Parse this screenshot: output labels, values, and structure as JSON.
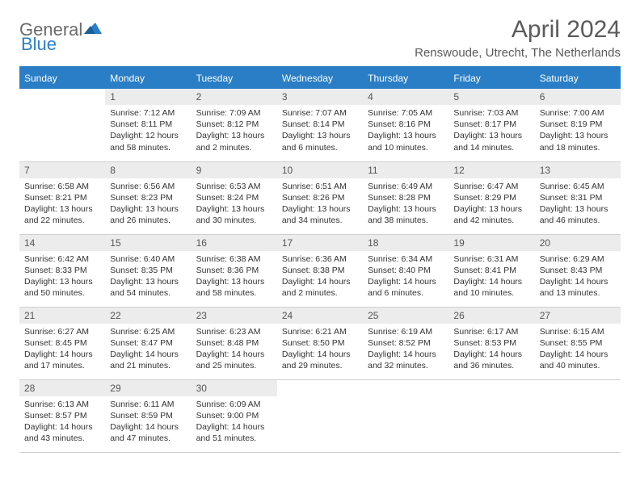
{
  "header": {
    "logo_general": "General",
    "logo_blue": "Blue",
    "month_title": "April 2024",
    "location": "Renswoude, Utrecht, The Netherlands"
  },
  "colors": {
    "header_bg": "#2a7ec6",
    "header_text": "#ffffff",
    "daynum_bg": "#ececec",
    "grid_line": "#cfcfcf",
    "text": "#333333",
    "title_text": "#5a5a5a",
    "logo_gray": "#6a6a6a",
    "logo_blue": "#2a7ec6",
    "page_bg": "#ffffff"
  },
  "weekdays": [
    "Sunday",
    "Monday",
    "Tuesday",
    "Wednesday",
    "Thursday",
    "Friday",
    "Saturday"
  ],
  "cells": [
    {
      "day": "",
      "sunrise": "",
      "sunset": "",
      "daylight": ""
    },
    {
      "day": "1",
      "sunrise": "Sunrise: 7:12 AM",
      "sunset": "Sunset: 8:11 PM",
      "daylight": "Daylight: 12 hours and 58 minutes."
    },
    {
      "day": "2",
      "sunrise": "Sunrise: 7:09 AM",
      "sunset": "Sunset: 8:12 PM",
      "daylight": "Daylight: 13 hours and 2 minutes."
    },
    {
      "day": "3",
      "sunrise": "Sunrise: 7:07 AM",
      "sunset": "Sunset: 8:14 PM",
      "daylight": "Daylight: 13 hours and 6 minutes."
    },
    {
      "day": "4",
      "sunrise": "Sunrise: 7:05 AM",
      "sunset": "Sunset: 8:16 PM",
      "daylight": "Daylight: 13 hours and 10 minutes."
    },
    {
      "day": "5",
      "sunrise": "Sunrise: 7:03 AM",
      "sunset": "Sunset: 8:17 PM",
      "daylight": "Daylight: 13 hours and 14 minutes."
    },
    {
      "day": "6",
      "sunrise": "Sunrise: 7:00 AM",
      "sunset": "Sunset: 8:19 PM",
      "daylight": "Daylight: 13 hours and 18 minutes."
    },
    {
      "day": "7",
      "sunrise": "Sunrise: 6:58 AM",
      "sunset": "Sunset: 8:21 PM",
      "daylight": "Daylight: 13 hours and 22 minutes."
    },
    {
      "day": "8",
      "sunrise": "Sunrise: 6:56 AM",
      "sunset": "Sunset: 8:23 PM",
      "daylight": "Daylight: 13 hours and 26 minutes."
    },
    {
      "day": "9",
      "sunrise": "Sunrise: 6:53 AM",
      "sunset": "Sunset: 8:24 PM",
      "daylight": "Daylight: 13 hours and 30 minutes."
    },
    {
      "day": "10",
      "sunrise": "Sunrise: 6:51 AM",
      "sunset": "Sunset: 8:26 PM",
      "daylight": "Daylight: 13 hours and 34 minutes."
    },
    {
      "day": "11",
      "sunrise": "Sunrise: 6:49 AM",
      "sunset": "Sunset: 8:28 PM",
      "daylight": "Daylight: 13 hours and 38 minutes."
    },
    {
      "day": "12",
      "sunrise": "Sunrise: 6:47 AM",
      "sunset": "Sunset: 8:29 PM",
      "daylight": "Daylight: 13 hours and 42 minutes."
    },
    {
      "day": "13",
      "sunrise": "Sunrise: 6:45 AM",
      "sunset": "Sunset: 8:31 PM",
      "daylight": "Daylight: 13 hours and 46 minutes."
    },
    {
      "day": "14",
      "sunrise": "Sunrise: 6:42 AM",
      "sunset": "Sunset: 8:33 PM",
      "daylight": "Daylight: 13 hours and 50 minutes."
    },
    {
      "day": "15",
      "sunrise": "Sunrise: 6:40 AM",
      "sunset": "Sunset: 8:35 PM",
      "daylight": "Daylight: 13 hours and 54 minutes."
    },
    {
      "day": "16",
      "sunrise": "Sunrise: 6:38 AM",
      "sunset": "Sunset: 8:36 PM",
      "daylight": "Daylight: 13 hours and 58 minutes."
    },
    {
      "day": "17",
      "sunrise": "Sunrise: 6:36 AM",
      "sunset": "Sunset: 8:38 PM",
      "daylight": "Daylight: 14 hours and 2 minutes."
    },
    {
      "day": "18",
      "sunrise": "Sunrise: 6:34 AM",
      "sunset": "Sunset: 8:40 PM",
      "daylight": "Daylight: 14 hours and 6 minutes."
    },
    {
      "day": "19",
      "sunrise": "Sunrise: 6:31 AM",
      "sunset": "Sunset: 8:41 PM",
      "daylight": "Daylight: 14 hours and 10 minutes."
    },
    {
      "day": "20",
      "sunrise": "Sunrise: 6:29 AM",
      "sunset": "Sunset: 8:43 PM",
      "daylight": "Daylight: 14 hours and 13 minutes."
    },
    {
      "day": "21",
      "sunrise": "Sunrise: 6:27 AM",
      "sunset": "Sunset: 8:45 PM",
      "daylight": "Daylight: 14 hours and 17 minutes."
    },
    {
      "day": "22",
      "sunrise": "Sunrise: 6:25 AM",
      "sunset": "Sunset: 8:47 PM",
      "daylight": "Daylight: 14 hours and 21 minutes."
    },
    {
      "day": "23",
      "sunrise": "Sunrise: 6:23 AM",
      "sunset": "Sunset: 8:48 PM",
      "daylight": "Daylight: 14 hours and 25 minutes."
    },
    {
      "day": "24",
      "sunrise": "Sunrise: 6:21 AM",
      "sunset": "Sunset: 8:50 PM",
      "daylight": "Daylight: 14 hours and 29 minutes."
    },
    {
      "day": "25",
      "sunrise": "Sunrise: 6:19 AM",
      "sunset": "Sunset: 8:52 PM",
      "daylight": "Daylight: 14 hours and 32 minutes."
    },
    {
      "day": "26",
      "sunrise": "Sunrise: 6:17 AM",
      "sunset": "Sunset: 8:53 PM",
      "daylight": "Daylight: 14 hours and 36 minutes."
    },
    {
      "day": "27",
      "sunrise": "Sunrise: 6:15 AM",
      "sunset": "Sunset: 8:55 PM",
      "daylight": "Daylight: 14 hours and 40 minutes."
    },
    {
      "day": "28",
      "sunrise": "Sunrise: 6:13 AM",
      "sunset": "Sunset: 8:57 PM",
      "daylight": "Daylight: 14 hours and 43 minutes."
    },
    {
      "day": "29",
      "sunrise": "Sunrise: 6:11 AM",
      "sunset": "Sunset: 8:59 PM",
      "daylight": "Daylight: 14 hours and 47 minutes."
    },
    {
      "day": "30",
      "sunrise": "Sunrise: 6:09 AM",
      "sunset": "Sunset: 9:00 PM",
      "daylight": "Daylight: 14 hours and 51 minutes."
    },
    {
      "day": "",
      "sunrise": "",
      "sunset": "",
      "daylight": ""
    },
    {
      "day": "",
      "sunrise": "",
      "sunset": "",
      "daylight": ""
    },
    {
      "day": "",
      "sunrise": "",
      "sunset": "",
      "daylight": ""
    },
    {
      "day": "",
      "sunrise": "",
      "sunset": "",
      "daylight": ""
    }
  ]
}
